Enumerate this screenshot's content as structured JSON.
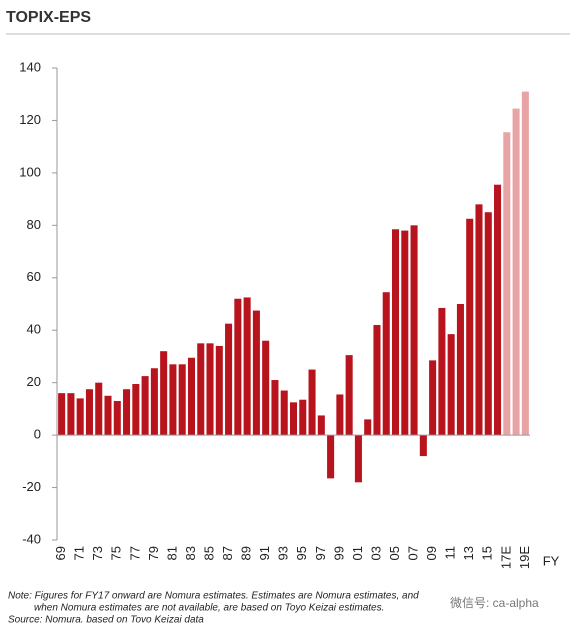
{
  "chart_data": {
    "type": "bar",
    "title": "TOPIX-EPS",
    "x_label": "FY",
    "categories": [
      "69",
      null,
      "71",
      null,
      "73",
      null,
      "75",
      null,
      "77",
      null,
      "79",
      null,
      "81",
      null,
      "83",
      null,
      "85",
      null,
      "87",
      null,
      "89",
      null,
      "91",
      null,
      "93",
      null,
      "95",
      null,
      "97",
      null,
      "99",
      null,
      "01",
      null,
      "03",
      null,
      "05",
      null,
      "07",
      null,
      "09",
      null,
      "11",
      null,
      "13",
      null,
      "15",
      null,
      "17E",
      null,
      "19E"
    ],
    "values": [
      16,
      16,
      14,
      17.5,
      20,
      15,
      13,
      17.5,
      19.5,
      22.5,
      25.5,
      32,
      27,
      27,
      29.5,
      35,
      35,
      34,
      42.5,
      52,
      52.5,
      47.5,
      36,
      21,
      17,
      12.5,
      13.5,
      25,
      7.5,
      -16.5,
      15.5,
      30.5,
      -18,
      6,
      42,
      54.5,
      78.5,
      78,
      80,
      -8,
      28.5,
      48.5,
      38.5,
      50,
      82.5,
      88,
      85,
      95.5,
      115.5,
      124.5,
      131
    ],
    "colors": [
      "#b8141e",
      "#b8141e",
      "#b8141e",
      "#b8141e",
      "#b8141e",
      "#b8141e",
      "#b8141e",
      "#b8141e",
      "#b8141e",
      "#b8141e",
      "#b8141e",
      "#b8141e",
      "#b8141e",
      "#b8141e",
      "#b8141e",
      "#b8141e",
      "#b8141e",
      "#b8141e",
      "#b8141e",
      "#b8141e",
      "#b8141e",
      "#b8141e",
      "#b8141e",
      "#b8141e",
      "#b8141e",
      "#b8141e",
      "#b8141e",
      "#b8141e",
      "#b8141e",
      "#b8141e",
      "#b8141e",
      "#b8141e",
      "#b8141e",
      "#b8141e",
      "#b8141e",
      "#b8141e",
      "#b8141e",
      "#b8141e",
      "#b8141e",
      "#b8141e",
      "#b8141e",
      "#b8141e",
      "#b8141e",
      "#b8141e",
      "#b8141e",
      "#b8141e",
      "#b8141e",
      "#b8141e",
      "#e8a4a4",
      "#e8a4a4",
      "#e8a4a4"
    ],
    "ylim": [
      -40,
      140
    ],
    "yticks": [
      -40,
      -20,
      0,
      20,
      40,
      60,
      80,
      100,
      120,
      140
    ],
    "notes": [
      "Note: Figures for FY17 onward are Nomura estimates. Estimates are Nomura estimates, and",
      "when Nomura estimates are not available, are based on Toyo Keizai estimates.",
      "Source: Nomura. based on Tovo Keizai data"
    ],
    "watermark": "微信号: ca-alpha"
  }
}
